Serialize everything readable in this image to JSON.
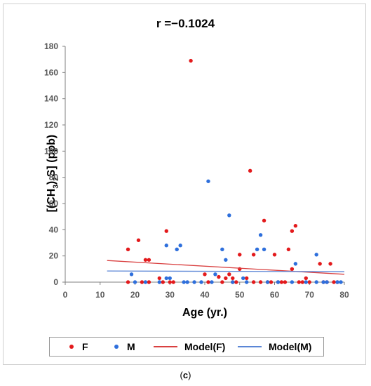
{
  "chart_data": {
    "type": "scatter",
    "title": "r =−0.1024",
    "xlabel": "Age (yr.)",
    "ylabel_parts": [
      "[(CH",
      "3",
      ")",
      "2",
      "S] (ppb)"
    ],
    "xlim": [
      0,
      80
    ],
    "ylim": [
      0,
      180
    ],
    "xticks": [
      "0",
      "10",
      "20",
      "30",
      "40",
      "50",
      "60",
      "70",
      "80"
    ],
    "yticks": [
      "0",
      "20",
      "40",
      "60",
      "80",
      "100",
      "120",
      "140",
      "160",
      "180"
    ],
    "grid": false,
    "legend_position": "bottom",
    "series": [
      {
        "name": "F",
        "kind": "points",
        "color": "#e31a1c",
        "points": [
          [
            18,
            25
          ],
          [
            21,
            32
          ],
          [
            23,
            17
          ],
          [
            24,
            17
          ],
          [
            29,
            39
          ],
          [
            40,
            6
          ],
          [
            36,
            169
          ],
          [
            44,
            4
          ],
          [
            45,
            0
          ],
          [
            46,
            3
          ],
          [
            47,
            6
          ],
          [
            48,
            3
          ],
          [
            49,
            0
          ],
          [
            50,
            21
          ],
          [
            50,
            10
          ],
          [
            52,
            3
          ],
          [
            53,
            85
          ],
          [
            54,
            21
          ],
          [
            57,
            47
          ],
          [
            60,
            21
          ],
          [
            64,
            25
          ],
          [
            65,
            39
          ],
          [
            65,
            10
          ],
          [
            66,
            43
          ],
          [
            68,
            0
          ],
          [
            69,
            3
          ],
          [
            73,
            14
          ],
          [
            75,
            0
          ],
          [
            76,
            14
          ],
          [
            78,
            0
          ],
          [
            18,
            0
          ],
          [
            22,
            0
          ],
          [
            24,
            0
          ],
          [
            27,
            3
          ],
          [
            28,
            0
          ],
          [
            30,
            0
          ],
          [
            31,
            0
          ],
          [
            41,
            0
          ],
          [
            48,
            0
          ],
          [
            54,
            0
          ],
          [
            56,
            0
          ],
          [
            58,
            0
          ],
          [
            59,
            0
          ],
          [
            61,
            0
          ],
          [
            62,
            0
          ],
          [
            63,
            0
          ],
          [
            67,
            0
          ],
          [
            70,
            0
          ],
          [
            74,
            0
          ],
          [
            77,
            0
          ]
        ]
      },
      {
        "name": "M",
        "kind": "points",
        "color": "#2e6fdc",
        "points": [
          [
            19,
            6
          ],
          [
            20,
            0
          ],
          [
            23,
            0
          ],
          [
            27,
            0
          ],
          [
            29,
            28
          ],
          [
            29,
            3
          ],
          [
            30,
            3
          ],
          [
            32,
            25
          ],
          [
            33,
            28
          ],
          [
            34,
            0
          ],
          [
            35,
            0
          ],
          [
            37,
            0
          ],
          [
            39,
            0
          ],
          [
            41,
            77
          ],
          [
            42,
            0
          ],
          [
            43,
            6
          ],
          [
            45,
            25
          ],
          [
            46,
            17
          ],
          [
            47,
            51
          ],
          [
            48,
            0
          ],
          [
            51,
            3
          ],
          [
            52,
            0
          ],
          [
            55,
            25
          ],
          [
            56,
            36
          ],
          [
            57,
            25
          ],
          [
            58,
            0
          ],
          [
            61,
            0
          ],
          [
            65,
            0
          ],
          [
            66,
            14
          ],
          [
            69,
            0
          ],
          [
            72,
            21
          ],
          [
            72,
            0
          ],
          [
            74,
            0
          ],
          [
            75,
            0
          ],
          [
            78,
            0
          ],
          [
            79,
            0
          ]
        ]
      },
      {
        "name": "Model(F)",
        "kind": "line",
        "color": "#d94040",
        "points": [
          [
            12,
            16.5
          ],
          [
            80,
            6
          ]
        ]
      },
      {
        "name": "Model(M)",
        "kind": "line",
        "color": "#5b86d6",
        "points": [
          [
            12,
            8.5
          ],
          [
            80,
            8
          ]
        ]
      }
    ]
  },
  "legend": {
    "f_label": "F",
    "m_label": "M",
    "model_f_label": "Model(F)",
    "model_m_label": "Model(M)"
  },
  "caption": {
    "open": "(",
    "letter": "c",
    "close": ")"
  }
}
